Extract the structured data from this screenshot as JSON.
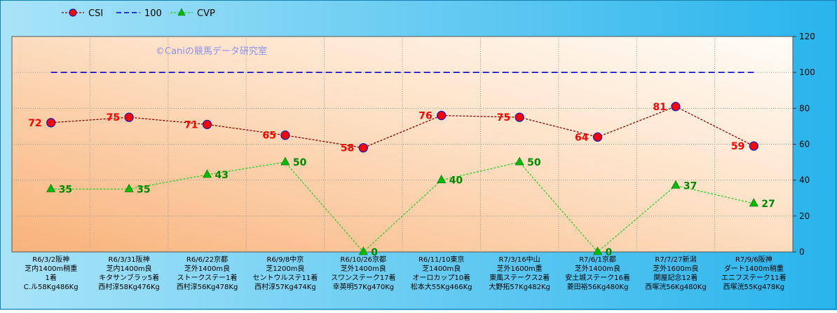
{
  "watermark": "©Caniの競馬データ研究室",
  "colors": {
    "csi": "#8b0000",
    "csi_fill": "#ff0000",
    "csi_label": "#ff0000",
    "ref": "#0000cc",
    "cvp": "#33cc33",
    "cvp_fill": "#00bb00",
    "cvp_label": "#008800"
  },
  "chart_data": {
    "type": "line",
    "ylim": [
      0,
      120
    ],
    "yticks": [
      0,
      20,
      40,
      60,
      80,
      100,
      120
    ],
    "grid": true,
    "legend_position": "top-left",
    "categories": [
      [
        "R6/3/2阪神",
        "芝内1400m稍重",
        "1着",
        "C.ル58Kg486Kg"
      ],
      [
        "R6/3/31阪神",
        "芝内1400m良",
        "キタサンブラッ5着",
        "西村淳58Kg476Kg"
      ],
      [
        "R6/6/22京都",
        "芝外1400m良",
        "ストークステー1着",
        "西村淳56Kg478Kg"
      ],
      [
        "R6/9/8中京",
        "芝1200m良",
        "セントウルステ11着",
        "西村淳57Kg474Kg"
      ],
      [
        "R6/10/26京都",
        "芝外1400m良",
        "スワンステーク17着",
        "幸英明57Kg470Kg"
      ],
      [
        "R6/11/10東京",
        "芝1400m良",
        "オーロカップ10着",
        "松本大55Kg466Kg"
      ],
      [
        "R7/3/16中山",
        "芝外1600m重",
        "東風ステークス2着",
        "大野拓57Kg482Kg"
      ],
      [
        "R7/6/1京都",
        "芝外1400m良",
        "安土城ステーク16着",
        "菱田裕56Kg480Kg"
      ],
      [
        "R7/7/27新潟",
        "芝外1600m良",
        "関屋記念12着",
        "西塚洸56Kg480Kg"
      ],
      [
        "R7/9/6阪神",
        "ダート1400m稍重",
        "エニフステーク11着",
        "西塚洸55Kg478Kg"
      ]
    ],
    "series": [
      {
        "name": "CSI",
        "values": [
          72,
          75,
          71,
          65,
          58,
          76,
          75,
          64,
          81,
          59
        ]
      },
      {
        "name": "100",
        "values": [
          100,
          100,
          100,
          100,
          100,
          100,
          100,
          100,
          100,
          100
        ]
      },
      {
        "name": "CVP",
        "values": [
          35,
          35,
          43,
          50,
          0,
          40,
          50,
          0,
          37,
          27
        ]
      }
    ]
  }
}
